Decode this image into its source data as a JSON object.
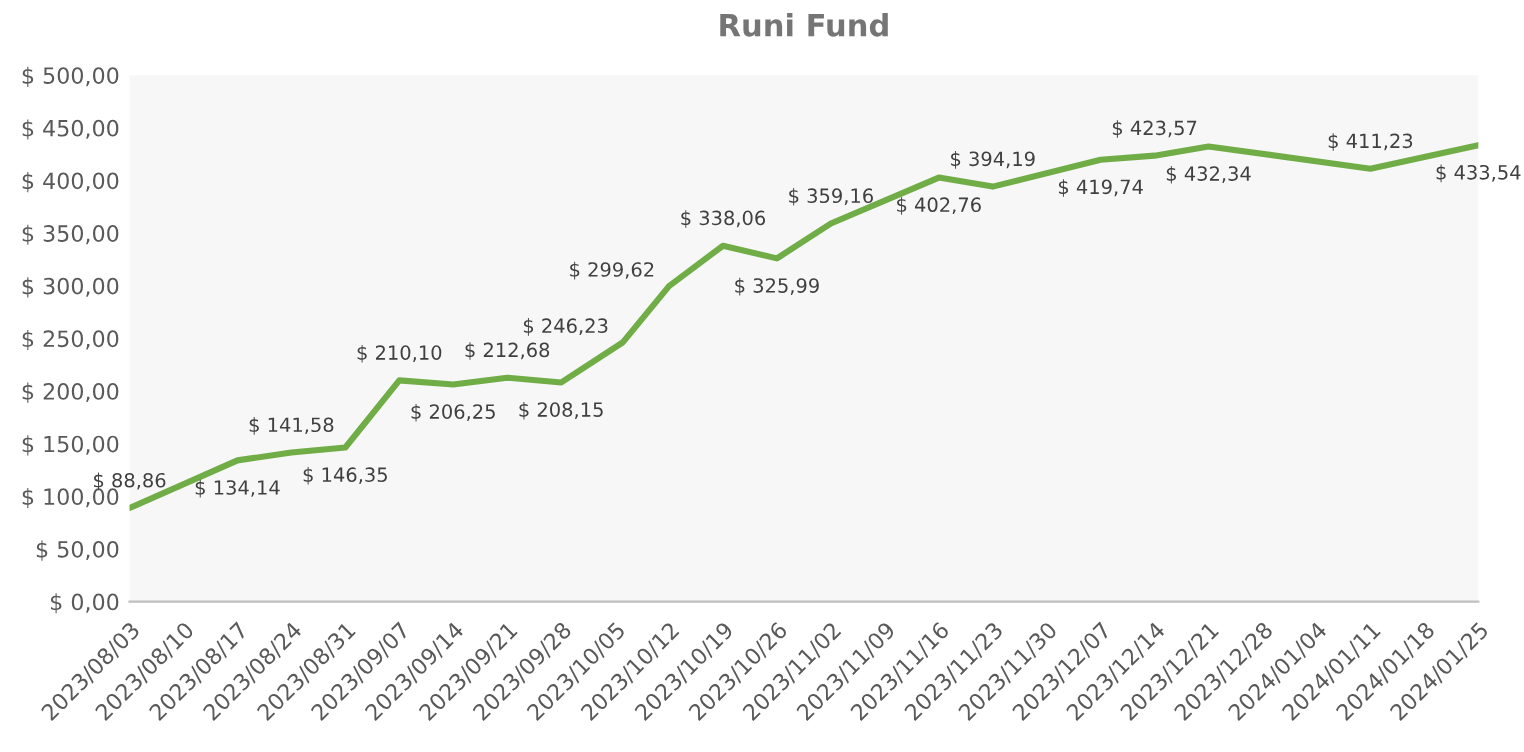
{
  "chart_data": {
    "type": "line",
    "title": "Runi Fund",
    "x": [
      "2023-08-03",
      "2023-08-17",
      "2023-08-24",
      "2023-08-31",
      "2023-09-07",
      "2023-09-14",
      "2023-09-21",
      "2023-09-28",
      "2023-10-06",
      "2023-10-12",
      "2023-10-19",
      "2023-10-26",
      "2023-11-02",
      "2023-11-16",
      "2023-11-23",
      "2023-12-07",
      "2023-12-14",
      "2023-12-21",
      "2024-01-11",
      "2024-01-25"
    ],
    "series": [
      {
        "color": "#70ad47",
        "values": [
          88.86,
          134.14,
          141.58,
          146.35,
          210.1,
          206.25,
          212.68,
          208.15,
          246.23,
          299.62,
          338.06,
          325.99,
          359.16,
          402.76,
          394.19,
          419.74,
          423.57,
          432.34,
          411.23,
          433.54
        ],
        "value_labels": [
          "$ 88,86",
          "$ 134,14",
          "$ 141,58",
          "$ 146,35",
          "$ 210,10",
          "$ 206,25",
          "$ 212,68",
          "$ 208,15",
          "$ 246,23",
          "$ 299,62",
          "$ 338,06",
          "$ 325,99",
          "$ 359,16",
          "$ 402,76",
          "$ 394,19",
          "$ 419,74",
          "$ 423,57",
          "$ 432,34",
          "$ 411,23",
          "$ 433,54"
        ]
      }
    ],
    "xlim": [
      "2023-08-03",
      "2024-01-25"
    ],
    "xticks": [
      {
        "value": "2023-08-03",
        "label": "2023/08/03"
      },
      {
        "value": "2023-08-10",
        "label": "2023/08/10"
      },
      {
        "value": "2023-08-17",
        "label": "2023/08/17"
      },
      {
        "value": "2023-08-24",
        "label": "2023/08/24"
      },
      {
        "value": "2023-08-31",
        "label": "2023/08/31"
      },
      {
        "value": "2023-09-07",
        "label": "2023/09/07"
      },
      {
        "value": "2023-09-14",
        "label": "2023/09/14"
      },
      {
        "value": "2023-09-21",
        "label": "2023/09/21"
      },
      {
        "value": "2023-09-28",
        "label": "2023/09/28"
      },
      {
        "value": "2023-10-05",
        "label": "2023/10/05"
      },
      {
        "value": "2023-10-12",
        "label": "2023/10/12"
      },
      {
        "value": "2023-10-19",
        "label": "2023/10/19"
      },
      {
        "value": "2023-10-26",
        "label": "2023/10/26"
      },
      {
        "value": "2023-11-02",
        "label": "2023/11/02"
      },
      {
        "value": "2023-11-09",
        "label": "2023/11/09"
      },
      {
        "value": "2023-11-16",
        "label": "2023/11/16"
      },
      {
        "value": "2023-11-23",
        "label": "2023/11/23"
      },
      {
        "value": "2023-11-30",
        "label": "2023/11/30"
      },
      {
        "value": "2023-12-07",
        "label": "2023/12/07"
      },
      {
        "value": "2023-12-14",
        "label": "2023/12/14"
      },
      {
        "value": "2023-12-21",
        "label": "2023/12/21"
      },
      {
        "value": "2023-12-28",
        "label": "2023/12/28"
      },
      {
        "value": "2024-01-04",
        "label": "2024/01/04"
      },
      {
        "value": "2024-01-11",
        "label": "2024/01/11"
      },
      {
        "value": "2024-01-18",
        "label": "2024/01/18"
      },
      {
        "value": "2024-01-25",
        "label": "2024/01/25"
      }
    ],
    "ylim": [
      0,
      500
    ],
    "yticks": [
      {
        "value": 0,
        "label": "$ 0,00"
      },
      {
        "value": 50,
        "label": "$ 50,00"
      },
      {
        "value": 100,
        "label": "$ 100,00"
      },
      {
        "value": 150,
        "label": "$ 150,00"
      },
      {
        "value": 200,
        "label": "$ 200,00"
      },
      {
        "value": 250,
        "label": "$ 250,00"
      },
      {
        "value": 300,
        "label": "$ 300,00"
      },
      {
        "value": 350,
        "label": "$ 350,00"
      },
      {
        "value": 400,
        "label": "$ 400,00"
      },
      {
        "value": 450,
        "label": "$ 450,00"
      },
      {
        "value": 500,
        "label": "$ 500,00"
      }
    ],
    "grid": false,
    "legend": false,
    "marker": "none",
    "line_style": "solid"
  }
}
